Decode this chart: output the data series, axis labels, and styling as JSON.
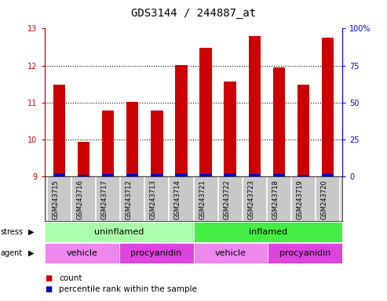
{
  "title": "GDS3144 / 244887_at",
  "samples": [
    "GSM243715",
    "GSM243716",
    "GSM243717",
    "GSM243712",
    "GSM243713",
    "GSM243714",
    "GSM243721",
    "GSM243722",
    "GSM243723",
    "GSM243718",
    "GSM243719",
    "GSM243720"
  ],
  "red_values": [
    11.47,
    9.93,
    10.77,
    11.02,
    10.78,
    12.01,
    12.48,
    11.57,
    12.8,
    11.95,
    11.47,
    12.75
  ],
  "blue_values": [
    0.08,
    0.04,
    0.06,
    0.06,
    0.06,
    0.08,
    0.06,
    0.08,
    0.06,
    0.06,
    0.04,
    0.06
  ],
  "base_value": 9.0,
  "ylim_left": [
    9.0,
    13.0
  ],
  "ylim_right": [
    0,
    100
  ],
  "yticks_left": [
    9,
    10,
    11,
    12,
    13
  ],
  "yticks_right": [
    0,
    25,
    50,
    75,
    100
  ],
  "ytick_labels_right": [
    "0",
    "25",
    "50",
    "75",
    "100%"
  ],
  "stress_groups": [
    {
      "label": "uninflamed",
      "start": 0,
      "end": 6,
      "color": "#AAFFAA"
    },
    {
      "label": "inflamed",
      "start": 6,
      "end": 12,
      "color": "#44EE44"
    }
  ],
  "agent_groups": [
    {
      "label": "vehicle",
      "start": 0,
      "end": 3,
      "color": "#EE88EE"
    },
    {
      "label": "procyanidin",
      "start": 3,
      "end": 6,
      "color": "#DD44DD"
    },
    {
      "label": "vehicle",
      "start": 6,
      "end": 9,
      "color": "#EE88EE"
    },
    {
      "label": "procyanidin",
      "start": 9,
      "end": 12,
      "color": "#DD44DD"
    }
  ],
  "bar_width": 0.5,
  "red_color": "#CC0000",
  "blue_color": "#0000CC",
  "background_color": "#FFFFFF",
  "plot_bg_color": "#FFFFFF",
  "xlabels_bg_color": "#C8C8C8",
  "title_fontsize": 10,
  "tick_fontsize": 7,
  "sample_fontsize": 6,
  "group_fontsize": 8,
  "legend_fontsize": 8
}
